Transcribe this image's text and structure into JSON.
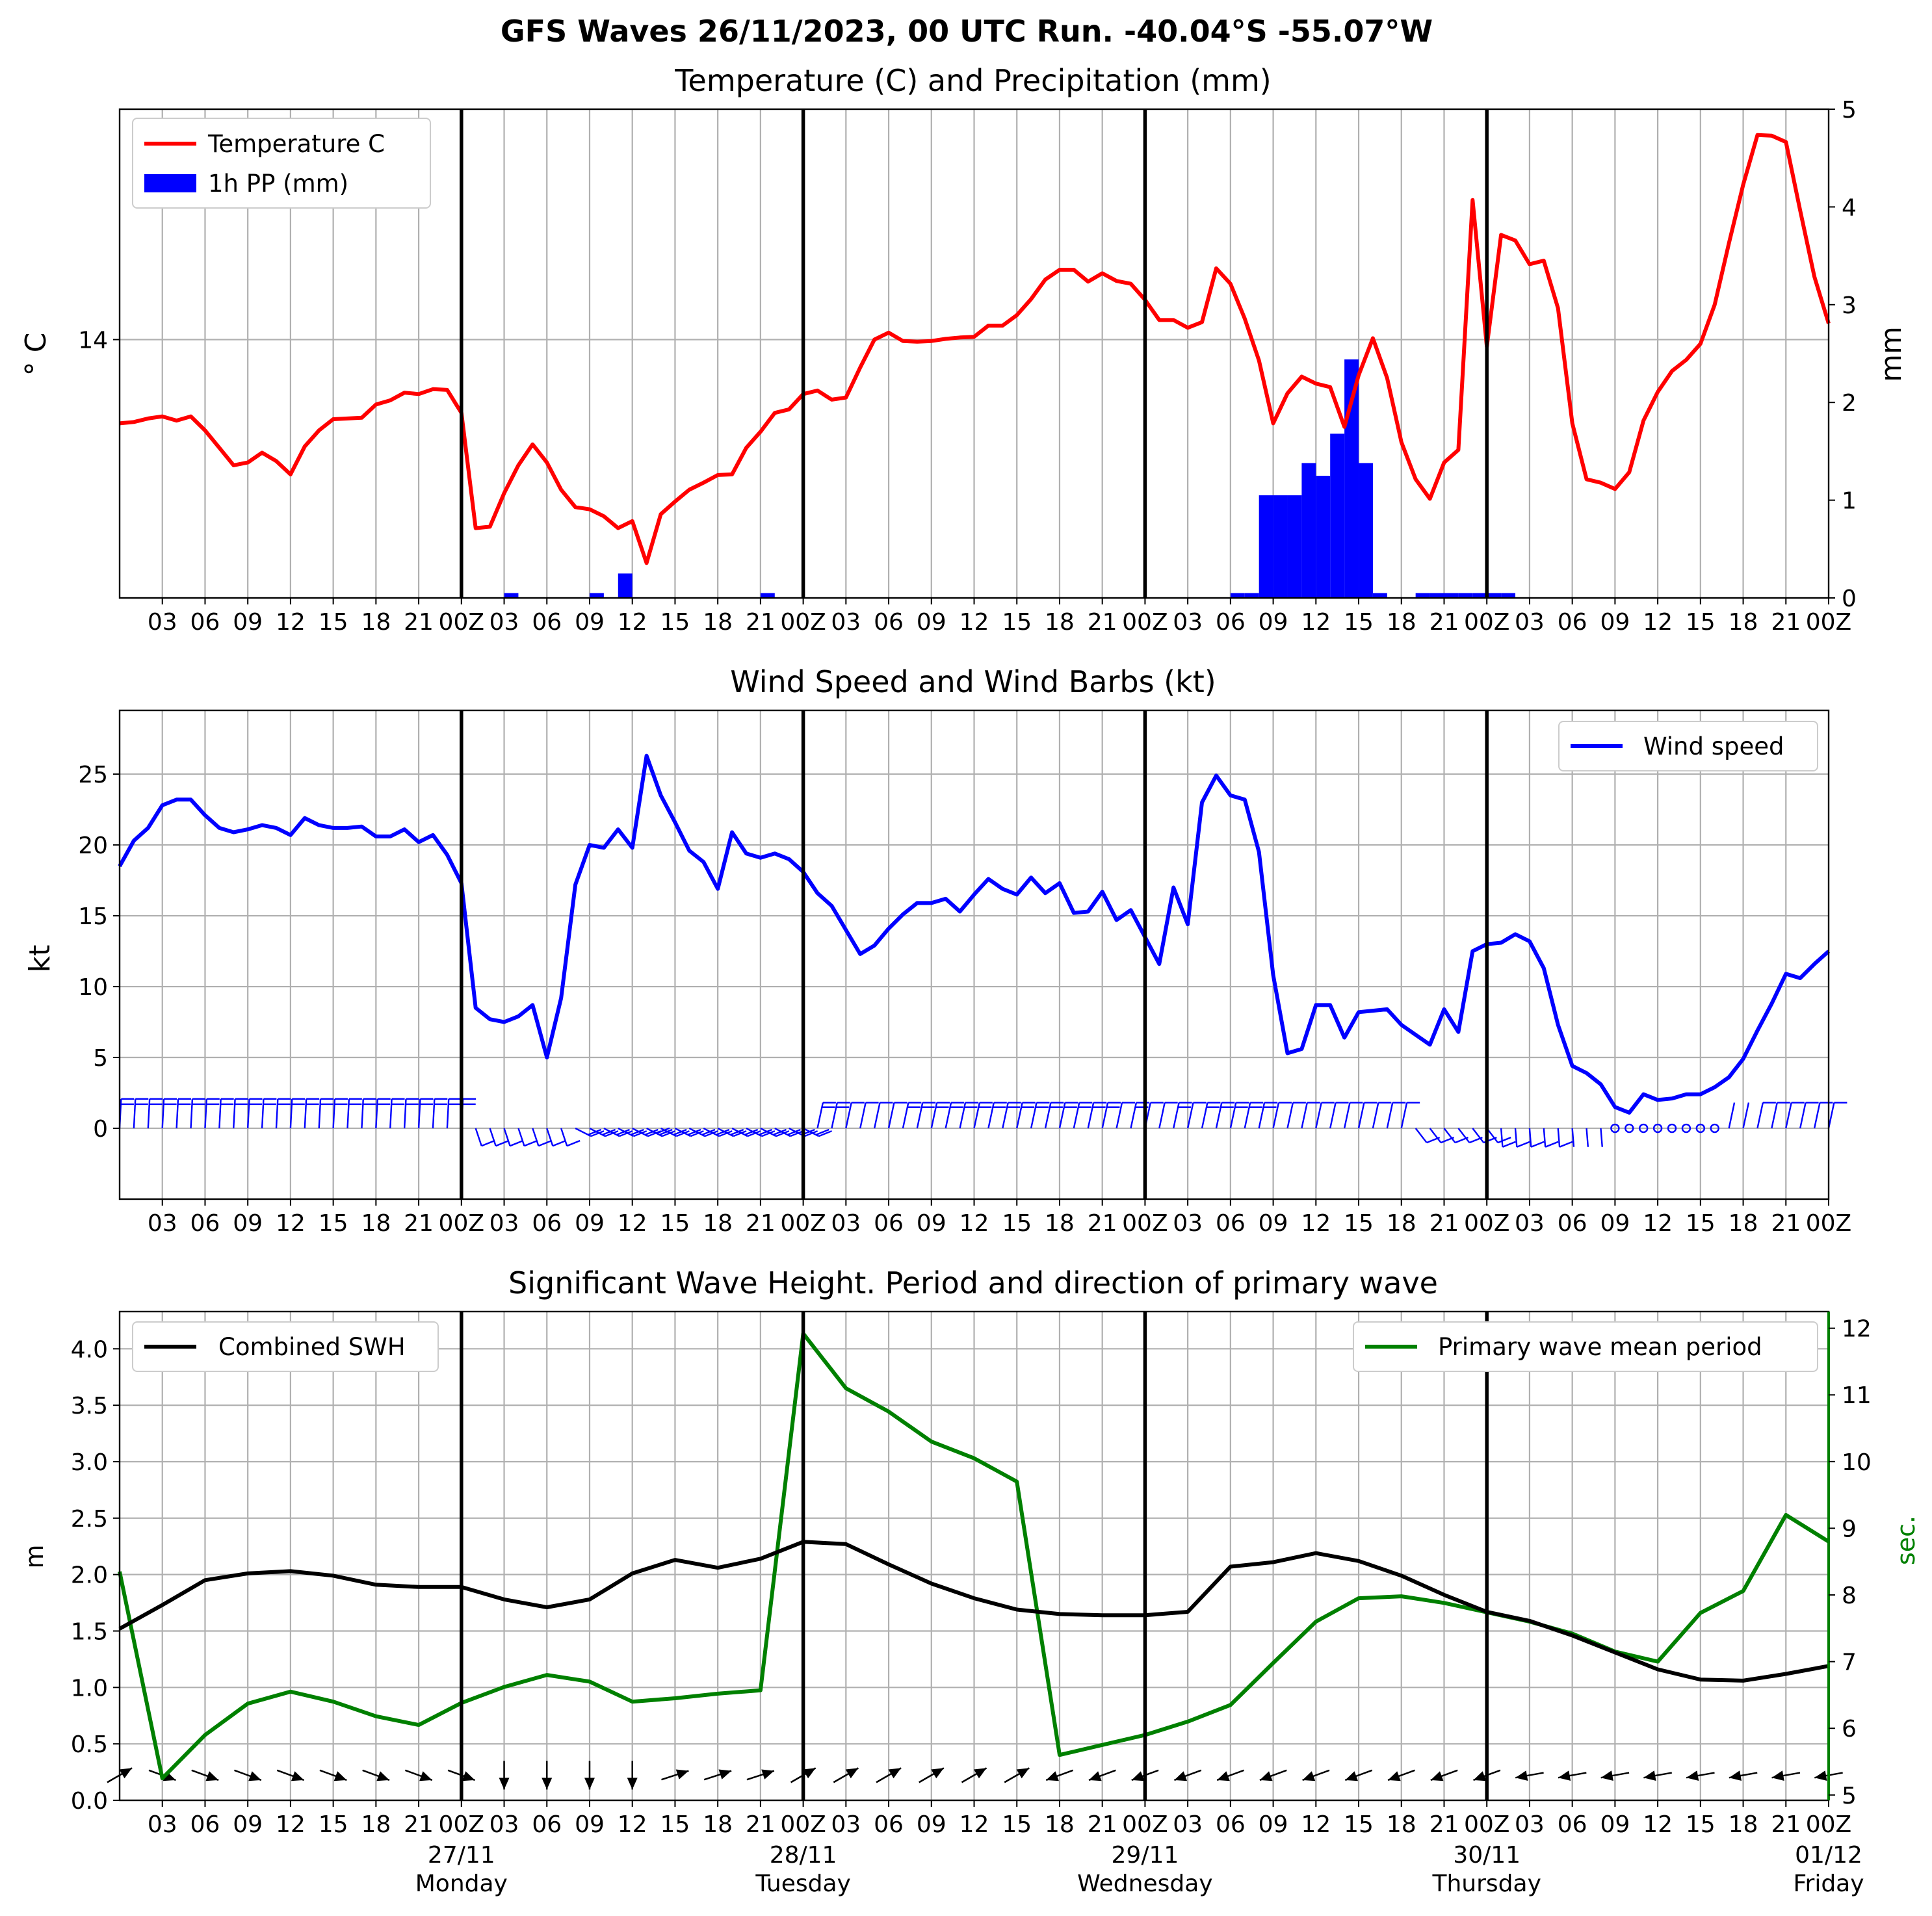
{
  "figure": {
    "title": "GFS Waves 26/11/2023, 00 UTC Run. -40.04°S -55.07°W"
  },
  "x_tick_labels": [
    "03",
    "06",
    "09",
    "12",
    "15",
    "18",
    "21",
    "00Z",
    "03",
    "06",
    "09",
    "12",
    "15",
    "18",
    "21",
    "00Z",
    "03",
    "06",
    "09",
    "12",
    "15",
    "18",
    "21",
    "00Z",
    "03",
    "06",
    "09",
    "12",
    "15",
    "18",
    "21",
    "00Z",
    "03",
    "06",
    "09",
    "12",
    "15",
    "18",
    "21",
    "00Z"
  ],
  "day_labels": [
    {
      "date": "27/11",
      "day": "Monday"
    },
    {
      "date": "28/11",
      "day": "Tuesday"
    },
    {
      "date": "29/11",
      "day": "Wednesday"
    },
    {
      "date": "30/11",
      "day": "Thursday"
    },
    {
      "date": "01/12",
      "day": "Friday"
    }
  ],
  "colors": {
    "temperature": "#ff0000",
    "precip": "#0000ff",
    "wind": "#0000ff",
    "swh": "#000000",
    "period": "#008000",
    "grid": "#b0b0b0"
  },
  "chart_data": [
    {
      "type": "line",
      "title": "Temperature (C) and Precipitation (mm)",
      "ylabel": "$^\\circ$C",
      "ylabel_display": "° C",
      "y2label": "mm",
      "x_unit": "hours after 2023-11-26 00 UTC",
      "xlim": [
        0,
        120
      ],
      "ylim": [
        10.3,
        17.3
      ],
      "y_ticks": [
        14
      ],
      "y2lim": [
        0,
        5
      ],
      "y2_ticks": [
        0,
        1,
        2,
        3,
        4,
        5
      ],
      "legend": "top-left",
      "series": [
        {
          "name": "Temperature C",
          "kind": "line",
          "axis": "left",
          "x": [
            0,
            1,
            2,
            3,
            4,
            5,
            6,
            7,
            8,
            9,
            10,
            11,
            12,
            13,
            14,
            15,
            16,
            17,
            18,
            19,
            20,
            21,
            22,
            23,
            24,
            25,
            26,
            27,
            28,
            29,
            30,
            31,
            32,
            33,
            34,
            35,
            36,
            37,
            38,
            39,
            40,
            41,
            42,
            43,
            44,
            45,
            46,
            47,
            48,
            49,
            50,
            51,
            52,
            53,
            54,
            55,
            56,
            57,
            58,
            59,
            60,
            61,
            62,
            63,
            64,
            65,
            66,
            67,
            68,
            69,
            70,
            71,
            72,
            73,
            74,
            75,
            76,
            77,
            78,
            79,
            80,
            81,
            82,
            83,
            84,
            85,
            86,
            87,
            88,
            89,
            90,
            91,
            92,
            93,
            94,
            95,
            96,
            97,
            98,
            99,
            100,
            101,
            102,
            103,
            104,
            105,
            106,
            107,
            108,
            109,
            110,
            111,
            112,
            113,
            114,
            115,
            116,
            117,
            118,
            119,
            120
          ],
          "values": [
            12.8,
            12.82,
            12.87,
            12.9,
            12.84,
            12.9,
            12.7,
            12.45,
            12.2,
            12.24,
            12.38,
            12.26,
            12.07,
            12.47,
            12.7,
            12.86,
            12.87,
            12.88,
            13.07,
            13.13,
            13.24,
            13.22,
            13.29,
            13.28,
            12.95,
            11.3,
            11.32,
            11.8,
            12.2,
            12.5,
            12.24,
            11.85,
            11.6,
            11.57,
            11.47,
            11.3,
            11.4,
            10.8,
            11.5,
            11.68,
            11.85,
            11.95,
            12.06,
            12.07,
            12.45,
            12.68,
            12.95,
            13.0,
            13.22,
            13.27,
            13.14,
            13.17,
            13.6,
            14.0,
            14.1,
            13.98,
            13.97,
            13.98,
            14.01,
            14.03,
            14.04,
            14.2,
            14.2,
            14.35,
            14.58,
            14.86,
            15.0,
            15.0,
            14.83,
            14.95,
            14.84,
            14.8,
            14.57,
            14.28,
            14.28,
            14.17,
            14.25,
            15.02,
            14.8,
            14.3,
            13.7,
            12.8,
            13.23,
            13.47,
            13.37,
            13.32,
            12.75,
            13.49,
            14.02,
            13.45,
            12.53,
            12.0,
            11.72,
            12.24,
            12.42,
            16.0,
            13.9,
            15.5,
            15.42,
            15.08,
            15.13,
            14.45,
            12.8,
            12.0,
            11.95,
            11.86,
            12.1,
            12.84,
            13.25,
            13.55,
            13.71,
            13.94,
            14.5,
            15.38,
            16.22,
            16.93,
            16.92,
            16.83,
            15.85,
            14.9,
            14.23
          ]
        },
        {
          "name": "1h PP (mm)",
          "kind": "bar",
          "axis": "right",
          "x": [
            28,
            34,
            36,
            46,
            79,
            80,
            81,
            82,
            83,
            84,
            85,
            86,
            87,
            88,
            89,
            92,
            93,
            94,
            95,
            96,
            97,
            98
          ],
          "values": [
            0.05,
            0.05,
            0.25,
            0.05,
            0.05,
            0.05,
            1.05,
            1.05,
            1.05,
            1.38,
            1.25,
            1.68,
            2.44,
            1.38,
            0.05,
            0.05,
            0.05,
            0.05,
            0.05,
            0.05,
            0.05,
            0.05
          ]
        }
      ]
    },
    {
      "type": "line",
      "title": "Wind Speed and Wind Barbs (kt)",
      "ylabel": "kt",
      "x_unit": "hours after 2023-11-26 00 UTC",
      "xlim": [
        0,
        120
      ],
      "ylim": [
        -5,
        29.5
      ],
      "y_ticks": [
        0,
        5,
        10,
        15,
        20,
        25
      ],
      "legend": "top-right",
      "series": [
        {
          "name": "Wind speed",
          "x": [
            0,
            1,
            2,
            3,
            4,
            5,
            6,
            7,
            8,
            9,
            10,
            11,
            12,
            13,
            14,
            15,
            16,
            17,
            18,
            19,
            20,
            21,
            22,
            23,
            24,
            25,
            26,
            27,
            28,
            29,
            30,
            31,
            32,
            33,
            34,
            35,
            36,
            37,
            38,
            39,
            40,
            41,
            42,
            43,
            44,
            45,
            46,
            47,
            48,
            49,
            50,
            51,
            52,
            53,
            54,
            55,
            56,
            57,
            58,
            59,
            60,
            61,
            62,
            63,
            64,
            65,
            66,
            67,
            68,
            69,
            70,
            71,
            72,
            73,
            74,
            75,
            76,
            77,
            78,
            79,
            80,
            81,
            82,
            83,
            84,
            85,
            86,
            87,
            88,
            89,
            90,
            91,
            92,
            93,
            94,
            95,
            96,
            97,
            98,
            99,
            100,
            101,
            102,
            103,
            104,
            105,
            106,
            107,
            108,
            109,
            110,
            111,
            112,
            113,
            114,
            115,
            116,
            117,
            118,
            119,
            120
          ],
          "values": [
            18.5,
            20.3,
            21.2,
            22.8,
            23.2,
            23.2,
            22.1,
            21.2,
            20.9,
            21.1,
            21.4,
            21.2,
            20.7,
            21.9,
            21.4,
            21.2,
            21.2,
            21.3,
            20.6,
            20.6,
            21.1,
            20.2,
            20.7,
            19.3,
            17.3,
            8.5,
            7.7,
            7.5,
            7.9,
            8.7,
            5.0,
            9.2,
            17.2,
            20.0,
            19.8,
            21.1,
            19.8,
            26.3,
            23.5,
            21.6,
            19.6,
            18.8,
            16.9,
            20.9,
            19.4,
            19.1,
            19.4,
            19.0,
            18.1,
            16.6,
            15.7,
            14.0,
            12.3,
            12.9,
            14.1,
            15.1,
            15.9,
            15.9,
            16.2,
            15.3,
            16.5,
            17.6,
            16.9,
            16.5,
            17.7,
            16.6,
            17.3,
            15.2,
            15.3,
            16.7,
            14.7,
            15.4,
            13.5,
            11.6,
            17.0,
            14.4,
            23.0,
            24.9,
            23.5,
            23.2,
            19.5,
            10.8,
            5.3,
            5.6,
            8.7,
            8.7,
            6.4,
            8.2,
            8.3,
            8.4,
            7.3,
            6.6,
            5.9,
            8.4,
            6.8,
            12.5,
            13.0,
            13.1,
            13.7,
            13.2,
            11.3,
            7.3,
            4.4,
            3.9,
            3.1,
            1.5,
            1.1,
            2.4,
            2.0,
            2.1,
            2.4,
            2.4,
            2.9,
            3.6,
            4.9,
            6.9,
            8.8,
            10.9,
            10.6,
            11.6,
            12.5
          ]
        }
      ]
    },
    {
      "type": "line",
      "title": "Significant Wave Height. Period and direction of primary wave",
      "ylabel": "m",
      "y2label": "sec.",
      "x_unit": "hours after 2023-11-26 00 UTC",
      "xlim": [
        0,
        120
      ],
      "ylim": [
        0,
        4.33
      ],
      "y_ticks": [
        0.0,
        0.5,
        1.0,
        1.5,
        2.0,
        2.5,
        3.0,
        3.5,
        4.0
      ],
      "y_tick_labels": [
        "0.0",
        "0.5",
        "1.0",
        "1.5",
        "2.0",
        "2.5",
        "3.0",
        "3.5",
        "4.0"
      ],
      "y2lim": [
        4.92,
        12.25
      ],
      "y2_ticks": [
        5,
        6,
        7,
        8,
        9,
        10,
        11,
        12
      ],
      "series": [
        {
          "name": "Combined SWH",
          "axis": "left",
          "legend": "top-left",
          "x": [
            0,
            3,
            6,
            9,
            12,
            15,
            18,
            21,
            24,
            27,
            30,
            33,
            36,
            39,
            42,
            45,
            48,
            51,
            54,
            57,
            60,
            63,
            66,
            69,
            72,
            75,
            78,
            81,
            84,
            87,
            90,
            93,
            96,
            99,
            102,
            105,
            108,
            111,
            114,
            117,
            120
          ],
          "values": [
            1.52,
            1.73,
            1.95,
            2.01,
            2.03,
            1.99,
            1.91,
            1.89,
            1.89,
            1.78,
            1.71,
            1.78,
            2.01,
            2.13,
            2.06,
            2.14,
            2.29,
            2.27,
            2.09,
            1.92,
            1.79,
            1.69,
            1.65,
            1.64,
            1.64,
            1.67,
            2.07,
            2.11,
            2.19,
            2.12,
            1.99,
            1.82,
            1.67,
            1.59,
            1.46,
            1.31,
            1.16,
            1.07,
            1.06,
            1.12,
            1.19
          ]
        },
        {
          "name": "Primary wave mean period",
          "axis": "right",
          "legend": "top-right",
          "x": [
            0,
            3,
            6,
            9,
            12,
            15,
            18,
            21,
            24,
            27,
            30,
            33,
            36,
            39,
            42,
            45,
            48,
            51,
            54,
            57,
            60,
            63,
            66,
            69,
            72,
            75,
            78,
            81,
            84,
            87,
            90,
            93,
            96,
            99,
            102,
            105,
            108,
            111,
            114,
            117,
            120
          ],
          "values": [
            8.35,
            5.25,
            5.9,
            6.37,
            6.55,
            6.4,
            6.18,
            6.05,
            6.38,
            6.62,
            6.8,
            6.7,
            6.4,
            6.45,
            6.52,
            6.57,
            11.92,
            11.1,
            10.75,
            10.3,
            10.05,
            9.7,
            5.6,
            5.75,
            5.9,
            6.1,
            6.35,
            6.98,
            7.6,
            7.95,
            7.98,
            7.88,
            7.74,
            7.6,
            7.42,
            7.15,
            7.0,
            7.73,
            8.06,
            9.2,
            8.8
          ]
        }
      ]
    }
  ]
}
